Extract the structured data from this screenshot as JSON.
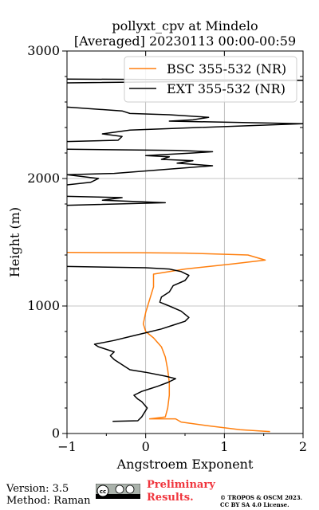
{
  "chart_data": {
    "type": "line",
    "title_line1": "pollyxt_cpv at Mindelo",
    "title_line2": "[Averaged] 20230113 00:00-00:59",
    "xlabel": "Angstroem Exponent",
    "ylabel": "Height (m)",
    "xlim": [
      -1,
      2
    ],
    "ylim": [
      0,
      3000
    ],
    "xticks": [
      "−1",
      "0",
      "1",
      "2"
    ],
    "xtick_values": [
      -1,
      0,
      1,
      2
    ],
    "yticks": [
      "0",
      "1000",
      "2000",
      "3000"
    ],
    "ytick_values": [
      0,
      1000,
      2000,
      3000
    ],
    "grid": true,
    "legend_position": "top-right",
    "series": [
      {
        "name": "BSC 355-532 (NR)",
        "color": "#ff7f0e",
        "points": [
          [
            1.58,
            15
          ],
          [
            1.2,
            30
          ],
          [
            0.8,
            60
          ],
          [
            0.45,
            90
          ],
          [
            0.38,
            115
          ],
          [
            0.05,
            115
          ],
          [
            0.25,
            130
          ],
          [
            0.28,
            200
          ],
          [
            0.3,
            300
          ],
          [
            0.3,
            400
          ],
          [
            0.28,
            500
          ],
          [
            0.25,
            600
          ],
          [
            0.2,
            680
          ],
          [
            0.1,
            750
          ],
          [
            0.0,
            800
          ],
          [
            -0.03,
            860
          ],
          [
            0.0,
            950
          ],
          [
            0.05,
            1050
          ],
          [
            0.1,
            1150
          ],
          [
            0.1,
            1200
          ],
          [
            0.1,
            1250
          ],
          [
            0.5,
            1290
          ],
          [
            1.1,
            1330
          ],
          [
            1.52,
            1360
          ],
          [
            1.3,
            1400
          ],
          [
            0.5,
            1415
          ],
          [
            -0.1,
            1418
          ],
          [
            -1.0,
            1420
          ]
        ],
        "extra_points": [
          [
            2.0,
            2770
          ],
          [
            2.1,
            2760
          ]
        ]
      },
      {
        "name": "EXT 355-532 (NR)",
        "color": "#000000",
        "segments": [
          [
            [
              -0.42,
              95
            ],
            [
              -0.1,
              100
            ],
            [
              -0.05,
              130
            ],
            [
              0.02,
              200
            ],
            [
              -0.05,
              250
            ],
            [
              -0.1,
              270
            ],
            [
              -0.15,
              300
            ],
            [
              -0.05,
              330
            ],
            [
              0.05,
              350
            ],
            [
              0.15,
              370
            ],
            [
              0.28,
              400
            ],
            [
              0.38,
              430
            ],
            [
              0.25,
              450
            ],
            [
              0.0,
              480
            ],
            [
              -0.2,
              500
            ],
            [
              -0.4,
              580
            ],
            [
              -0.45,
              610
            ],
            [
              -0.4,
              640
            ],
            [
              -0.6,
              680
            ],
            [
              -0.65,
              700
            ],
            [
              -0.4,
              730
            ],
            [
              -0.2,
              760
            ],
            [
              0.0,
              790
            ],
            [
              0.2,
              820
            ],
            [
              0.35,
              850
            ],
            [
              0.5,
              880
            ],
            [
              0.55,
              910
            ],
            [
              0.45,
              960
            ],
            [
              0.3,
              1000
            ],
            [
              0.18,
              1030
            ],
            [
              0.2,
              1070
            ],
            [
              0.3,
              1110
            ],
            [
              0.35,
              1160
            ],
            [
              0.5,
              1200
            ],
            [
              0.55,
              1240
            ],
            [
              0.45,
              1270
            ],
            [
              0.3,
              1290
            ],
            [
              0.0,
              1300
            ],
            [
              -1.0,
              1310
            ]
          ],
          [
            [
              -1.0,
              1790
            ],
            [
              0.25,
              1810
            ],
            [
              -0.55,
              1830
            ],
            [
              -0.3,
              1850
            ],
            [
              -1.0,
              1860
            ]
          ],
          [
            [
              -1.0,
              1950
            ],
            [
              -0.7,
              1970
            ],
            [
              -0.6,
              2000
            ],
            [
              -1.0,
              2030
            ],
            [
              -0.4,
              2040
            ],
            [
              0.85,
              2100
            ],
            [
              0.4,
              2120
            ],
            [
              0.6,
              2140
            ],
            [
              0.2,
              2150
            ],
            [
              0.3,
              2170
            ],
            [
              0.0,
              2180
            ],
            [
              0.6,
              2200
            ],
            [
              0.85,
              2210
            ],
            [
              0.4,
              2220
            ],
            [
              -1.0,
              2230
            ]
          ],
          [
            [
              -1.0,
              2290
            ],
            [
              -0.35,
              2300
            ],
            [
              -0.3,
              2330
            ],
            [
              -0.55,
              2350
            ],
            [
              -0.2,
              2380
            ],
            [
              2.0,
              2430
            ],
            [
              0.3,
              2450
            ],
            [
              0.6,
              2460
            ],
            [
              0.8,
              2480
            ],
            [
              0.3,
              2500
            ],
            [
              -0.2,
              2510
            ],
            [
              -0.3,
              2530
            ],
            [
              -1.0,
              2560
            ]
          ],
          [
            [
              -1.0,
              2750
            ],
            [
              2.0,
              2770
            ],
            [
              -1.0,
              2780
            ]
          ]
        ]
      }
    ]
  },
  "footer": {
    "version": "Version: 3.5",
    "method": "Method: Raman",
    "cc_text": "cc ⓘ ⓢ",
    "preliminary_line1": "Preliminary",
    "preliminary_line2": "Results.",
    "copyright_line1": "© TROPOS & OSCM 2023.",
    "copyright_line2": "CC BY SA 4.0 License."
  }
}
